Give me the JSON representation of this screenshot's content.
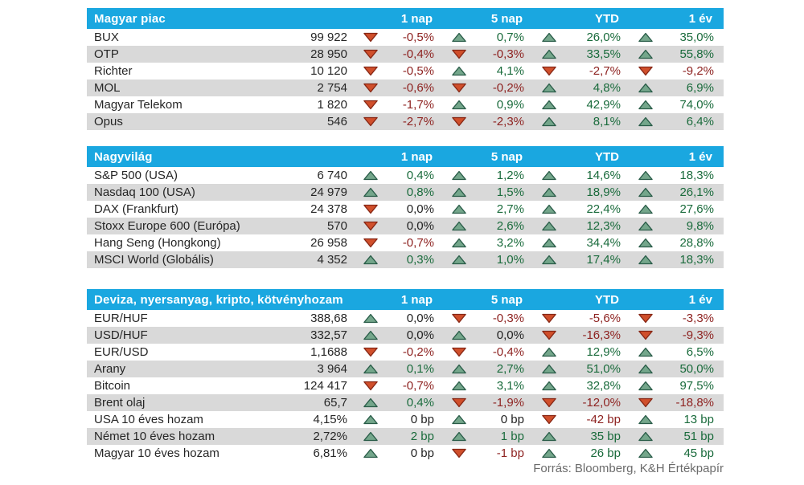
{
  "palette": {
    "header_bg": "#1aa7e0",
    "row_alt_bg": "#d9d9d9",
    "text_dark": "#262626",
    "text_positive": "#1a6b3c",
    "text_negative": "#8e2321",
    "up_arrow_fill": "#74a68b",
    "up_arrow_border": "#295c48",
    "down_arrow_fill": "#d04f2b",
    "down_arrow_border": "#872715"
  },
  "footer": {
    "source": "Forrás: Bloomberg, K&H Értékpapír"
  },
  "tables": [
    {
      "title": "Magyar piac",
      "columns": [
        "1 nap",
        "5 nap",
        "YTD",
        "1 év"
      ],
      "rows": [
        {
          "name": "BUX",
          "value": "99 922",
          "changes": [
            {
              "arrow": "down",
              "value": "-0,5%",
              "tone": "neg"
            },
            {
              "arrow": "up",
              "value": "0,7%",
              "tone": "pos"
            },
            {
              "arrow": "up",
              "value": "26,0%",
              "tone": "pos"
            },
            {
              "arrow": "up",
              "value": "35,0%",
              "tone": "pos"
            }
          ]
        },
        {
          "name": "OTP",
          "value": "28 950",
          "changes": [
            {
              "arrow": "down",
              "value": "-0,4%",
              "tone": "neg"
            },
            {
              "arrow": "down",
              "value": "-0,3%",
              "tone": "neg"
            },
            {
              "arrow": "up",
              "value": "33,5%",
              "tone": "pos"
            },
            {
              "arrow": "up",
              "value": "55,8%",
              "tone": "pos"
            }
          ]
        },
        {
          "name": "Richter",
          "value": "10 120",
          "changes": [
            {
              "arrow": "down",
              "value": "-0,5%",
              "tone": "neg"
            },
            {
              "arrow": "up",
              "value": "4,1%",
              "tone": "pos"
            },
            {
              "arrow": "down",
              "value": "-2,7%",
              "tone": "neg"
            },
            {
              "arrow": "down",
              "value": "-9,2%",
              "tone": "neg"
            }
          ]
        },
        {
          "name": "MOL",
          "value": "2 754",
          "changes": [
            {
              "arrow": "down",
              "value": "-0,6%",
              "tone": "neg"
            },
            {
              "arrow": "down",
              "value": "-0,2%",
              "tone": "neg"
            },
            {
              "arrow": "up",
              "value": "4,8%",
              "tone": "pos"
            },
            {
              "arrow": "up",
              "value": "6,9%",
              "tone": "pos"
            }
          ]
        },
        {
          "name": "Magyar Telekom",
          "value": "1 820",
          "changes": [
            {
              "arrow": "down",
              "value": "-1,7%",
              "tone": "neg"
            },
            {
              "arrow": "up",
              "value": "0,9%",
              "tone": "pos"
            },
            {
              "arrow": "up",
              "value": "42,9%",
              "tone": "pos"
            },
            {
              "arrow": "up",
              "value": "74,0%",
              "tone": "pos"
            }
          ]
        },
        {
          "name": "Opus",
          "value": "546",
          "changes": [
            {
              "arrow": "down",
              "value": "-2,7%",
              "tone": "neg"
            },
            {
              "arrow": "down",
              "value": "-2,3%",
              "tone": "neg"
            },
            {
              "arrow": "up",
              "value": "8,1%",
              "tone": "pos"
            },
            {
              "arrow": "up",
              "value": "6,4%",
              "tone": "pos"
            }
          ]
        }
      ]
    },
    {
      "title": "Nagyvilág",
      "columns": [
        "1 nap",
        "5 nap",
        "YTD",
        "1 év"
      ],
      "rows": [
        {
          "name": "S&P 500 (USA)",
          "value": "6 740",
          "changes": [
            {
              "arrow": "up",
              "value": "0,4%",
              "tone": "pos"
            },
            {
              "arrow": "up",
              "value": "1,2%",
              "tone": "pos"
            },
            {
              "arrow": "up",
              "value": "14,6%",
              "tone": "pos"
            },
            {
              "arrow": "up",
              "value": "18,3%",
              "tone": "pos"
            }
          ]
        },
        {
          "name": "Nasdaq 100 (USA)",
          "value": "24 979",
          "changes": [
            {
              "arrow": "up",
              "value": "0,8%",
              "tone": "pos"
            },
            {
              "arrow": "up",
              "value": "1,5%",
              "tone": "pos"
            },
            {
              "arrow": "up",
              "value": "18,9%",
              "tone": "pos"
            },
            {
              "arrow": "up",
              "value": "26,1%",
              "tone": "pos"
            }
          ]
        },
        {
          "name": "DAX (Frankfurt)",
          "value": "24 378",
          "changes": [
            {
              "arrow": "down",
              "value": "0,0%",
              "tone": "neu"
            },
            {
              "arrow": "up",
              "value": "2,7%",
              "tone": "pos"
            },
            {
              "arrow": "up",
              "value": "22,4%",
              "tone": "pos"
            },
            {
              "arrow": "up",
              "value": "27,6%",
              "tone": "pos"
            }
          ]
        },
        {
          "name": "Stoxx Europe 600 (Európa)",
          "value": "570",
          "changes": [
            {
              "arrow": "down",
              "value": "0,0%",
              "tone": "neu"
            },
            {
              "arrow": "up",
              "value": "2,6%",
              "tone": "pos"
            },
            {
              "arrow": "up",
              "value": "12,3%",
              "tone": "pos"
            },
            {
              "arrow": "up",
              "value": "9,8%",
              "tone": "pos"
            }
          ]
        },
        {
          "name": "Hang Seng (Hongkong)",
          "value": "26 958",
          "changes": [
            {
              "arrow": "down",
              "value": "-0,7%",
              "tone": "neg"
            },
            {
              "arrow": "up",
              "value": "3,2%",
              "tone": "pos"
            },
            {
              "arrow": "up",
              "value": "34,4%",
              "tone": "pos"
            },
            {
              "arrow": "up",
              "value": "28,8%",
              "tone": "pos"
            }
          ]
        },
        {
          "name": "MSCI World (Globális)",
          "value": "4 352",
          "changes": [
            {
              "arrow": "up",
              "value": "0,3%",
              "tone": "pos"
            },
            {
              "arrow": "up",
              "value": "1,0%",
              "tone": "pos"
            },
            {
              "arrow": "up",
              "value": "17,4%",
              "tone": "pos"
            },
            {
              "arrow": "up",
              "value": "18,3%",
              "tone": "pos"
            }
          ]
        }
      ]
    },
    {
      "title": "Deviza, nyersanyag, kripto, kötvényhozam",
      "columns": [
        "1 nap",
        "5 nap",
        "YTD",
        "1 év"
      ],
      "rows": [
        {
          "name": "EUR/HUF",
          "value": "388,68",
          "changes": [
            {
              "arrow": "up",
              "value": "0,0%",
              "tone": "neu"
            },
            {
              "arrow": "down",
              "value": "-0,3%",
              "tone": "neg"
            },
            {
              "arrow": "down",
              "value": "-5,6%",
              "tone": "neg"
            },
            {
              "arrow": "down",
              "value": "-3,3%",
              "tone": "neg"
            }
          ]
        },
        {
          "name": "USD/HUF",
          "value": "332,57",
          "changes": [
            {
              "arrow": "up",
              "value": "0,0%",
              "tone": "neu"
            },
            {
              "arrow": "up",
              "value": "0,0%",
              "tone": "neu"
            },
            {
              "arrow": "down",
              "value": "-16,3%",
              "tone": "neg"
            },
            {
              "arrow": "down",
              "value": "-9,3%",
              "tone": "neg"
            }
          ]
        },
        {
          "name": "EUR/USD",
          "value": "1,1688",
          "changes": [
            {
              "arrow": "down",
              "value": "-0,2%",
              "tone": "neg"
            },
            {
              "arrow": "down",
              "value": "-0,4%",
              "tone": "neg"
            },
            {
              "arrow": "up",
              "value": "12,9%",
              "tone": "pos"
            },
            {
              "arrow": "up",
              "value": "6,5%",
              "tone": "pos"
            }
          ]
        },
        {
          "name": "Arany",
          "value": "3 964",
          "changes": [
            {
              "arrow": "up",
              "value": "0,1%",
              "tone": "pos"
            },
            {
              "arrow": "up",
              "value": "2,7%",
              "tone": "pos"
            },
            {
              "arrow": "up",
              "value": "51,0%",
              "tone": "pos"
            },
            {
              "arrow": "up",
              "value": "50,0%",
              "tone": "pos"
            }
          ]
        },
        {
          "name": "Bitcoin",
          "value": "124 417",
          "changes": [
            {
              "arrow": "down",
              "value": "-0,7%",
              "tone": "neg"
            },
            {
              "arrow": "up",
              "value": "3,1%",
              "tone": "pos"
            },
            {
              "arrow": "up",
              "value": "32,8%",
              "tone": "pos"
            },
            {
              "arrow": "up",
              "value": "97,5%",
              "tone": "pos"
            }
          ]
        },
        {
          "name": "Brent olaj",
          "value": "65,7",
          "changes": [
            {
              "arrow": "up",
              "value": "0,4%",
              "tone": "pos"
            },
            {
              "arrow": "down",
              "value": "-1,9%",
              "tone": "neg"
            },
            {
              "arrow": "down",
              "value": "-12,0%",
              "tone": "neg"
            },
            {
              "arrow": "down",
              "value": "-18,8%",
              "tone": "neg"
            }
          ]
        },
        {
          "name": "USA 10 éves hozam",
          "value": "4,15%",
          "changes": [
            {
              "arrow": "up",
              "value": "0 bp",
              "tone": "neu"
            },
            {
              "arrow": "up",
              "value": "0 bp",
              "tone": "neu"
            },
            {
              "arrow": "down",
              "value": "-42 bp",
              "tone": "neg"
            },
            {
              "arrow": "up",
              "value": "13 bp",
              "tone": "pos"
            }
          ]
        },
        {
          "name": "Német 10 éves hozam",
          "value": "2,72%",
          "changes": [
            {
              "arrow": "up",
              "value": "2 bp",
              "tone": "pos"
            },
            {
              "arrow": "up",
              "value": "1 bp",
              "tone": "pos"
            },
            {
              "arrow": "up",
              "value": "35 bp",
              "tone": "pos"
            },
            {
              "arrow": "up",
              "value": "51 bp",
              "tone": "pos"
            }
          ]
        },
        {
          "name": "Magyar 10 éves hozam",
          "value": "6,81%",
          "changes": [
            {
              "arrow": "up",
              "value": "0 bp",
              "tone": "neu"
            },
            {
              "arrow": "down",
              "value": "-1 bp",
              "tone": "neg"
            },
            {
              "arrow": "up",
              "value": "26 bp",
              "tone": "pos"
            },
            {
              "arrow": "up",
              "value": "45 bp",
              "tone": "pos"
            }
          ]
        }
      ]
    }
  ]
}
